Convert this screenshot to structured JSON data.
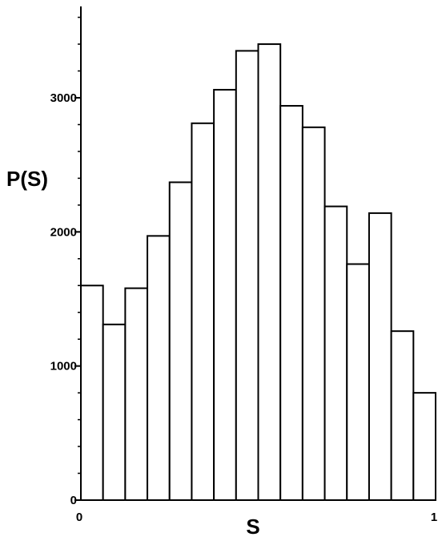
{
  "chart_data": {
    "type": "bar",
    "title": "",
    "xlabel": "S",
    "ylabel": "P(S)",
    "xlim": [
      0,
      1
    ],
    "ylim": [
      0,
      3600
    ],
    "grid": false,
    "bin_width": 0.0625,
    "x_ticks": [
      0,
      1
    ],
    "x_tick_labels": [
      "0",
      "1"
    ],
    "y_ticks": [
      0,
      1000,
      2000,
      3000
    ],
    "y_tick_labels": [
      "0",
      "1000",
      "2000",
      "3000"
    ],
    "bins": [
      {
        "start": 0.0,
        "value": 1600
      },
      {
        "start": 0.0625,
        "value": 1310
      },
      {
        "start": 0.125,
        "value": 1580
      },
      {
        "start": 0.1875,
        "value": 1970
      },
      {
        "start": 0.25,
        "value": 2370
      },
      {
        "start": 0.3125,
        "value": 2810
      },
      {
        "start": 0.375,
        "value": 3060
      },
      {
        "start": 0.4375,
        "value": 3350
      },
      {
        "start": 0.5,
        "value": 3400
      },
      {
        "start": 0.5625,
        "value": 2940
      },
      {
        "start": 0.625,
        "value": 2780
      },
      {
        "start": 0.6875,
        "value": 2190
      },
      {
        "start": 0.75,
        "value": 1760
      },
      {
        "start": 0.8125,
        "value": 2140
      },
      {
        "start": 0.875,
        "value": 1260
      },
      {
        "start": 0.9375,
        "value": 800
      }
    ]
  }
}
